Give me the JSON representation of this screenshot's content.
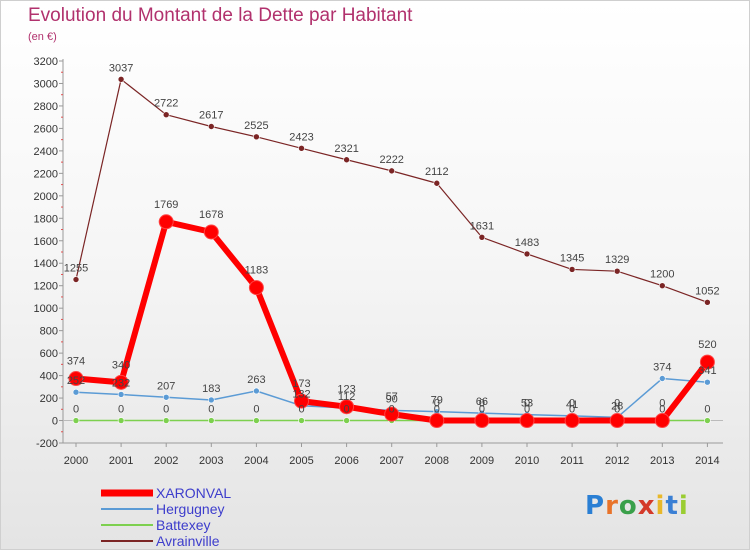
{
  "title": "Evolution du Montant de la Dette par Habitant",
  "unit": "(en €)",
  "brand": "Proxiti",
  "chart_data": {
    "type": "line",
    "title": "Evolution du Montant de la Dette par Habitant",
    "ylabel": "(en €)",
    "xlabel": "",
    "x": [
      "2000",
      "2001",
      "2002",
      "2003",
      "2004",
      "2005",
      "2006",
      "2007",
      "2008",
      "2009",
      "2010",
      "2011",
      "2012",
      "2013",
      "2014"
    ],
    "ylim": [
      -200,
      3200
    ],
    "yticks": [
      -200,
      0,
      200,
      400,
      600,
      800,
      1000,
      1200,
      1400,
      1600,
      1800,
      2000,
      2200,
      2400,
      2600,
      2800,
      3000,
      3200
    ],
    "grid": false,
    "legend_position": "bottom-left",
    "series": [
      {
        "name": "XARONVAL",
        "color": "#ff0000",
        "values": [
          374,
          340,
          1769,
          1678,
          1183,
          173,
          123,
          57,
          0,
          0,
          0,
          0,
          0,
          0,
          520
        ]
      },
      {
        "name": "Hergugney",
        "color": "#5b9bd5",
        "values": [
          252,
          232,
          207,
          183,
          263,
          132,
          112,
          90,
          79,
          66,
          53,
          41,
          28,
          374,
          341
        ]
      },
      {
        "name": "Battexey",
        "color": "#7dd04f",
        "values": [
          0,
          0,
          0,
          0,
          0,
          0,
          0,
          0,
          0,
          0,
          0,
          0,
          0,
          0,
          0
        ]
      },
      {
        "name": "Avrainville",
        "color": "#7b2525",
        "values": [
          1255,
          3037,
          2722,
          2617,
          2525,
          2423,
          2321,
          2222,
          2112,
          1631,
          1483,
          1345,
          1329,
          1200,
          1052
        ]
      }
    ]
  }
}
